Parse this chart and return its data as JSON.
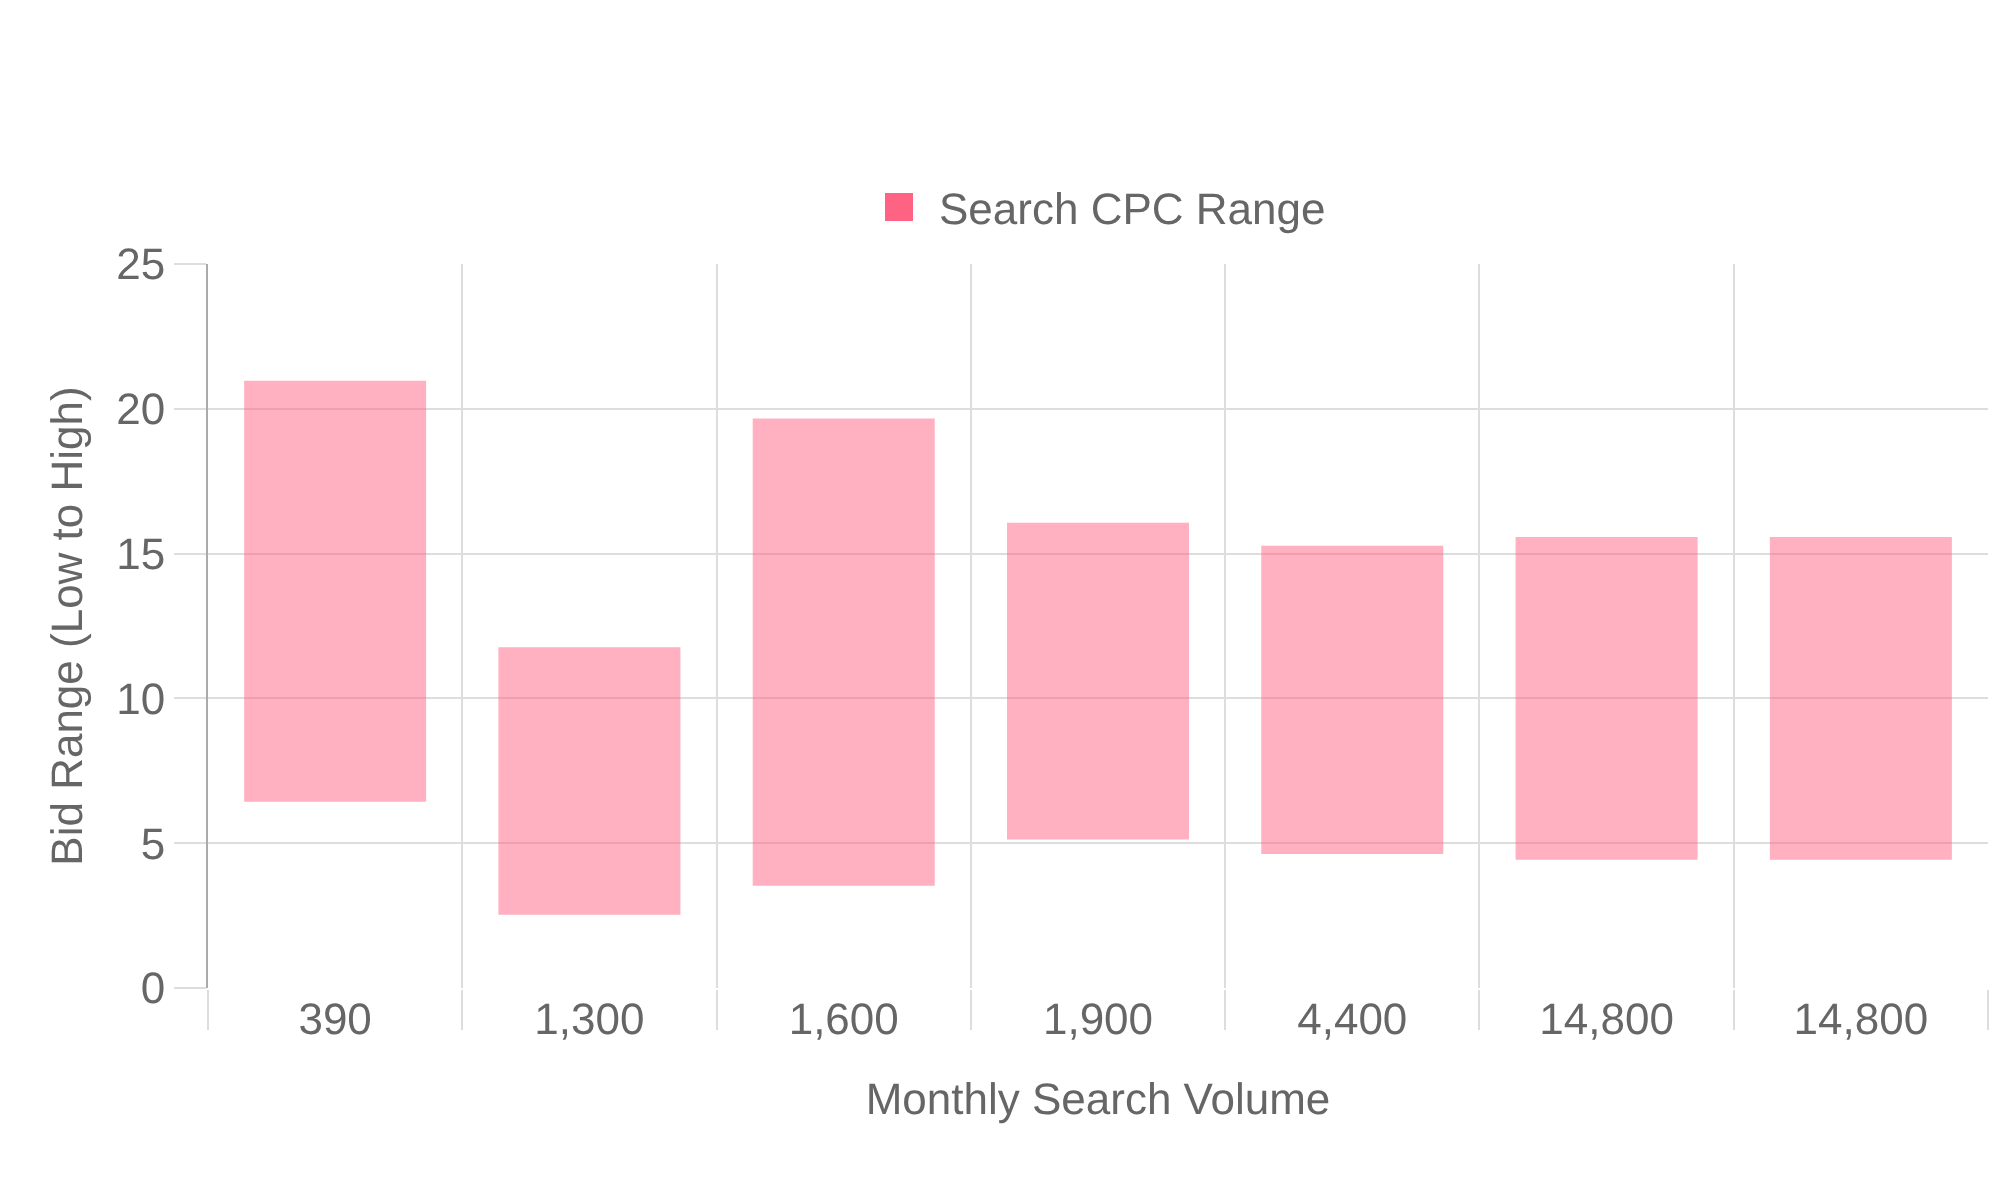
{
  "chart_data": {
    "type": "bar",
    "xlabel": "Monthly Search Volume",
    "ylabel": "Bid Range (Low to High)",
    "categories": [
      "390",
      "1,300",
      "1,600",
      "1,900",
      "4,400",
      "14,800",
      "14,800"
    ],
    "series": [
      {
        "name": "Search CPC Range",
        "color": "#ff6384",
        "base": [
          6.5,
          2.6,
          3.6,
          5.2,
          4.7,
          4.5,
          4.5
        ],
        "values": [
          14.4,
          9.1,
          16.0,
          10.8,
          10.5,
          11.0,
          11.0
        ]
      }
    ],
    "ylim": [
      0,
      25
    ],
    "yticks": [
      0,
      5,
      10,
      15,
      20,
      25
    ],
    "grid": true,
    "legend": "top"
  }
}
